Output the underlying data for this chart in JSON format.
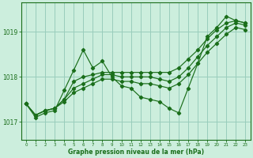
{
  "bg_color": "#cceedd",
  "grid_color": "#99ccbb",
  "line_color": "#1a6e1a",
  "marker_color": "#1a6e1a",
  "xlabel": "Graphe pression niveau de la mer (hPa)",
  "ylim": [
    1016.6,
    1019.65
  ],
  "xlim": [
    -0.5,
    23.5
  ],
  "yticks": [
    1017,
    1018,
    1019
  ],
  "xticks": [
    0,
    1,
    2,
    3,
    4,
    5,
    6,
    7,
    8,
    9,
    10,
    11,
    12,
    13,
    14,
    15,
    16,
    17,
    18,
    19,
    20,
    21,
    22,
    23
  ],
  "main_series": [
    1017.4,
    1017.1,
    1017.2,
    1017.25,
    1017.7,
    1018.15,
    1018.6,
    1018.2,
    1018.35,
    1018.0,
    1017.8,
    1017.75,
    1017.55,
    1017.5,
    1017.45,
    1017.3,
    1017.2,
    1017.75,
    1018.3,
    1018.9,
    1019.1,
    1019.35,
    1019.25,
    1019.2
  ],
  "trend1": [
    1017.4,
    1017.15,
    1017.25,
    1017.3,
    1017.5,
    1017.9,
    1018.0,
    1018.05,
    1018.1,
    1018.1,
    1018.1,
    1018.1,
    1018.1,
    1018.1,
    1018.1,
    1018.1,
    1018.2,
    1018.4,
    1018.6,
    1018.85,
    1019.05,
    1019.2,
    1019.25,
    1019.2
  ],
  "trend2": [
    1017.4,
    1017.15,
    1017.25,
    1017.3,
    1017.5,
    1017.75,
    1017.85,
    1017.95,
    1018.05,
    1018.05,
    1018.0,
    1018.0,
    1018.0,
    1018.0,
    1017.95,
    1017.9,
    1018.0,
    1018.2,
    1018.45,
    1018.7,
    1018.9,
    1019.1,
    1019.2,
    1019.15
  ],
  "trend3": [
    1017.4,
    1017.15,
    1017.25,
    1017.3,
    1017.45,
    1017.65,
    1017.75,
    1017.85,
    1017.95,
    1017.95,
    1017.9,
    1017.9,
    1017.85,
    1017.85,
    1017.8,
    1017.75,
    1017.85,
    1018.05,
    1018.3,
    1018.55,
    1018.75,
    1018.95,
    1019.1,
    1019.05
  ]
}
